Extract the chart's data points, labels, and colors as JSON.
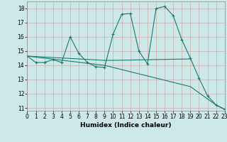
{
  "xlabel": "Humidex (Indice chaleur)",
  "bg_color": "#cce8e8",
  "line_color": "#1a7a6e",
  "xlim": [
    0,
    23
  ],
  "ylim": [
    10.8,
    18.5
  ],
  "yticks": [
    11,
    12,
    13,
    14,
    15,
    16,
    17,
    18
  ],
  "xticks": [
    0,
    1,
    2,
    3,
    4,
    5,
    6,
    7,
    8,
    9,
    10,
    11,
    12,
    13,
    14,
    15,
    16,
    17,
    18,
    19,
    20,
    21,
    22,
    23
  ],
  "line1_x": [
    0,
    1,
    2,
    3,
    4,
    5,
    6,
    7,
    8,
    9,
    10,
    11,
    12,
    13,
    14,
    15,
    16,
    17,
    18,
    19,
    20,
    21,
    22,
    23
  ],
  "line1_y": [
    14.65,
    14.2,
    14.2,
    14.4,
    14.2,
    16.0,
    14.85,
    14.2,
    13.9,
    13.85,
    16.2,
    17.6,
    17.65,
    15.0,
    14.1,
    18.0,
    18.15,
    17.5,
    15.8,
    14.5,
    13.1,
    11.85,
    11.2,
    10.9
  ],
  "line2_x": [
    0,
    9,
    10,
    19
  ],
  "line2_y": [
    14.65,
    14.35,
    14.35,
    14.45
  ],
  "line3_x": [
    0,
    9,
    19,
    22,
    23
  ],
  "line3_y": [
    14.65,
    14.0,
    12.5,
    11.2,
    10.9
  ]
}
